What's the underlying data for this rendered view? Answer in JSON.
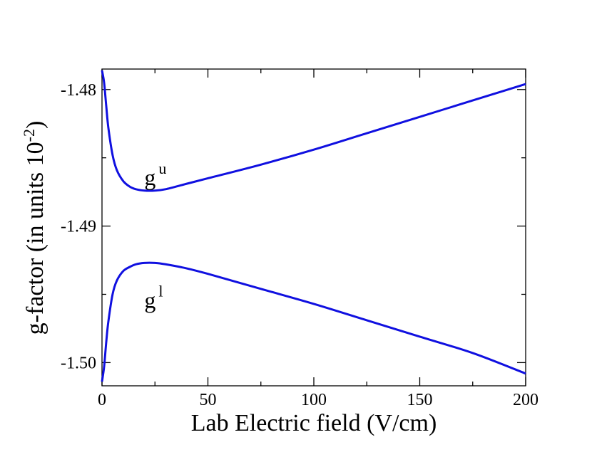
{
  "chart_data": {
    "type": "line",
    "title": "",
    "xlabel": "Lab Electric field (V/cm)",
    "ylabel_parts": {
      "main": "g-factor (in units 10",
      "sup": "-2",
      "close": ")"
    },
    "xlim": [
      0,
      200
    ],
    "ylim": [
      -1.5017,
      -1.4785
    ],
    "xticks": [
      0,
      50,
      100,
      150,
      200
    ],
    "xtick_labels": [
      "0",
      "50",
      "100",
      "150",
      "200"
    ],
    "yticks": [
      -1.48,
      -1.49,
      -1.5
    ],
    "ytick_labels": [
      "-1.48",
      "-1.49",
      "-1.50"
    ],
    "grid": false,
    "line_color": "#1010e0",
    "series": [
      {
        "name": "g^u",
        "x": [
          0,
          1,
          2,
          3,
          5,
          7,
          10,
          13,
          16,
          20,
          25,
          30,
          40,
          50,
          75,
          100,
          125,
          150,
          175,
          200
        ],
        "y": [
          -1.4786,
          -1.4795,
          -1.4812,
          -1.4828,
          -1.4848,
          -1.4859,
          -1.4867,
          -1.4871,
          -1.4873,
          -1.4874,
          -1.4874,
          -1.4873,
          -1.4869,
          -1.4865,
          -1.4855,
          -1.4844,
          -1.4832,
          -1.482,
          -1.4808,
          -1.4796
        ]
      },
      {
        "name": "g^l",
        "x": [
          0,
          1,
          2,
          3,
          5,
          7,
          10,
          13,
          16,
          20,
          25,
          30,
          40,
          50,
          75,
          100,
          125,
          150,
          175,
          200
        ],
        "y": [
          -1.5014,
          -1.5003,
          -1.4985,
          -1.497,
          -1.495,
          -1.494,
          -1.4933,
          -1.493,
          -1.4928,
          -1.4927,
          -1.4927,
          -1.4928,
          -1.4931,
          -1.4935,
          -1.4946,
          -1.4957,
          -1.4969,
          -1.4981,
          -1.4993,
          -1.5008
        ]
      }
    ],
    "annotations": [
      {
        "base": "g",
        "sup": "u",
        "x": 20,
        "y": -1.487
      },
      {
        "base": "g",
        "sup": "l",
        "x": 20,
        "y": -1.496
      }
    ]
  }
}
